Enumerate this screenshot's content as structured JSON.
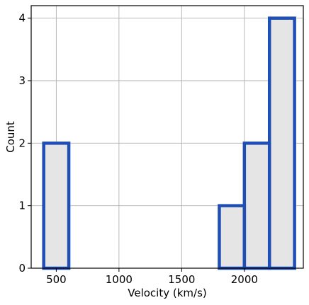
{
  "chart_data": {
    "type": "bar",
    "title": "",
    "xlabel": "Velocity (km/s)",
    "ylabel": "Count",
    "xlim": [
      300,
      2470
    ],
    "ylim": [
      0,
      4.2
    ],
    "xticks": [
      500,
      1000,
      1500,
      2000
    ],
    "yticks": [
      0,
      1,
      2,
      3,
      4
    ],
    "grid": true,
    "histogram_style": "step-filled",
    "bins": [
      {
        "x0": 400,
        "x1": 600,
        "count": 2
      },
      {
        "x0": 600,
        "x1": 800,
        "count": 0
      },
      {
        "x0": 800,
        "x1": 1000,
        "count": 0
      },
      {
        "x0": 1000,
        "x1": 1200,
        "count": 0
      },
      {
        "x0": 1200,
        "x1": 1400,
        "count": 0
      },
      {
        "x0": 1400,
        "x1": 1600,
        "count": 0
      },
      {
        "x0": 1600,
        "x1": 1800,
        "count": 0
      },
      {
        "x0": 1800,
        "x1": 2000,
        "count": 1
      },
      {
        "x0": 2000,
        "x1": 2200,
        "count": 2
      },
      {
        "x0": 2200,
        "x1": 2400,
        "count": 4
      }
    ],
    "colors": {
      "edge": "#1f4eb4",
      "fill": "#e5e5e5",
      "grid": "#b0b0b0",
      "axis": "#000000"
    }
  }
}
